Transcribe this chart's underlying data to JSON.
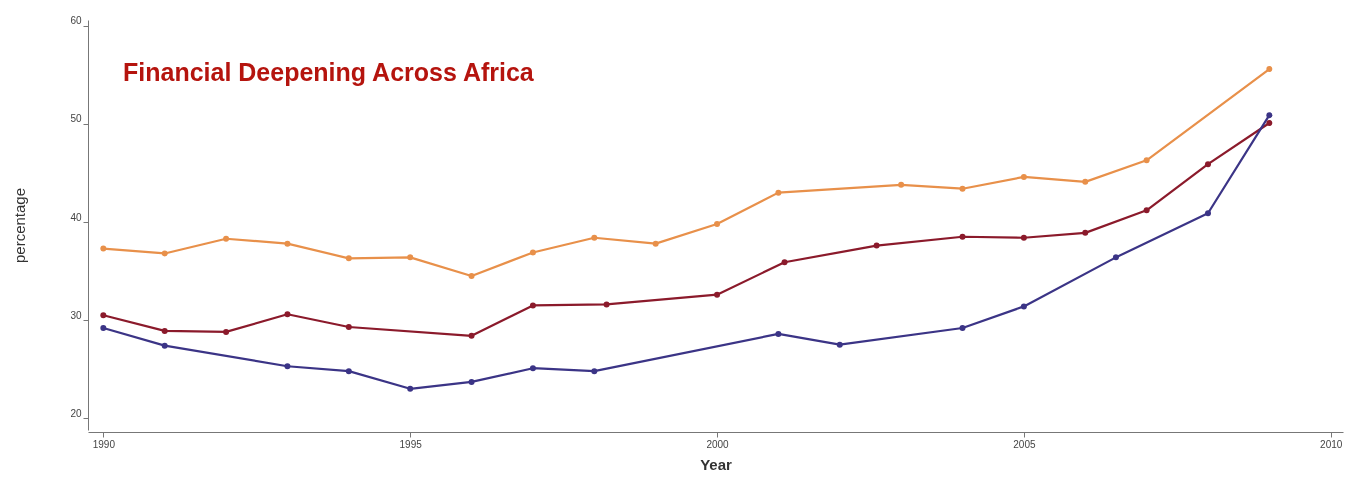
{
  "chart_data": {
    "type": "line",
    "title": "Financial Deepening Across Africa",
    "xlabel": "Year",
    "ylabel": "percentage",
    "xlim": [
      1989.75,
      2010.2
    ],
    "xticks": [
      1990,
      1995,
      2000,
      2005,
      2010
    ],
    "ylim": [
      18.8,
      60.6
    ],
    "yticks": [
      20,
      30,
      40,
      50,
      60
    ],
    "grid": false,
    "legend": false,
    "marker": "circle",
    "line_style": "solid",
    "series": [
      {
        "color": "#e8904a",
        "x": [
          1990,
          1991,
          1992,
          1993,
          1994,
          1995,
          1996,
          1997,
          1998,
          1999,
          2000,
          2001,
          2003,
          2004,
          2005,
          2006,
          2007,
          2009
        ],
        "values": [
          37.3,
          36.8,
          38.3,
          37.8,
          36.3,
          36.4,
          34.5,
          36.9,
          38.4,
          37.8,
          39.8,
          43.0,
          43.8,
          43.4,
          44.6,
          44.1,
          46.3,
          55.6
        ]
      },
      {
        "color": "#8b1a2b",
        "x": [
          1990,
          1991,
          1992,
          1993,
          1994,
          1996,
          1997,
          1998.2,
          2000,
          2001.1,
          2002.6,
          2004,
          2005,
          2006,
          2007,
          2008,
          2009
        ],
        "values": [
          30.5,
          28.9,
          28.8,
          30.6,
          29.3,
          28.4,
          31.5,
          31.6,
          32.6,
          35.9,
          37.6,
          38.5,
          38.4,
          38.9,
          41.2,
          45.9,
          50.1
        ]
      },
      {
        "color": "#3b3486",
        "x": [
          1990,
          1991,
          1993,
          1994,
          1995,
          1996,
          1997,
          1998,
          2001,
          2002,
          2004,
          2005,
          2006.5,
          2008,
          2009
        ],
        "values": [
          29.2,
          27.4,
          25.3,
          24.8,
          23.0,
          23.7,
          25.1,
          24.8,
          28.6,
          27.5,
          29.2,
          31.4,
          36.4,
          40.9,
          50.9
        ]
      }
    ]
  }
}
